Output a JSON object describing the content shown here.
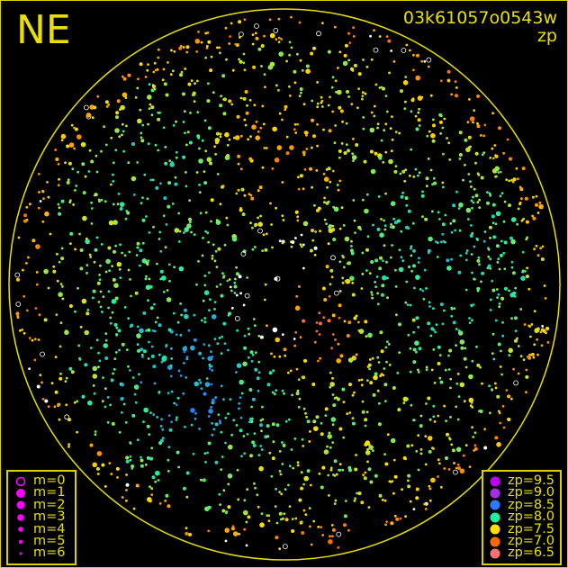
{
  "header": {
    "region": "NE",
    "image_id": "03k61057o0543w",
    "quantity": "zp"
  },
  "chart_data": {
    "type": "scatter",
    "title": "03k61057o0543w",
    "subtitle": "zp",
    "corner_label": "NE",
    "grid": false,
    "horizon_circle_color": "#e8e000",
    "magnitude_legend": {
      "placement": "bottom-left",
      "entries": [
        "m=0",
        "m=1",
        "m=2",
        "m=3",
        "m=4",
        "m=5",
        "m=6"
      ]
    },
    "zp_legend": {
      "placement": "bottom-right",
      "entries": [
        {
          "label": "zp=9.5",
          "zp": 9.5,
          "color": "#c000f0"
        },
        {
          "label": "zp=9.0",
          "zp": 9.0,
          "color": "#a030e0"
        },
        {
          "label": "zp=8.5",
          "zp": 8.5,
          "color": "#2a7cff"
        },
        {
          "label": "zp=8.0",
          "zp": 8.0,
          "color": "#20f0a0"
        },
        {
          "label": "zp=7.5",
          "zp": 7.5,
          "color": "#ffe000"
        },
        {
          "label": "zp=7.0",
          "zp": 7.0,
          "color": "#ff6a00"
        },
        {
          "label": "zp=6.5",
          "zp": 6.5,
          "color": "#ff7070"
        }
      ]
    },
    "zp_range": [
      6.5,
      9.5
    ],
    "saturated_color": "#ffffff"
  }
}
